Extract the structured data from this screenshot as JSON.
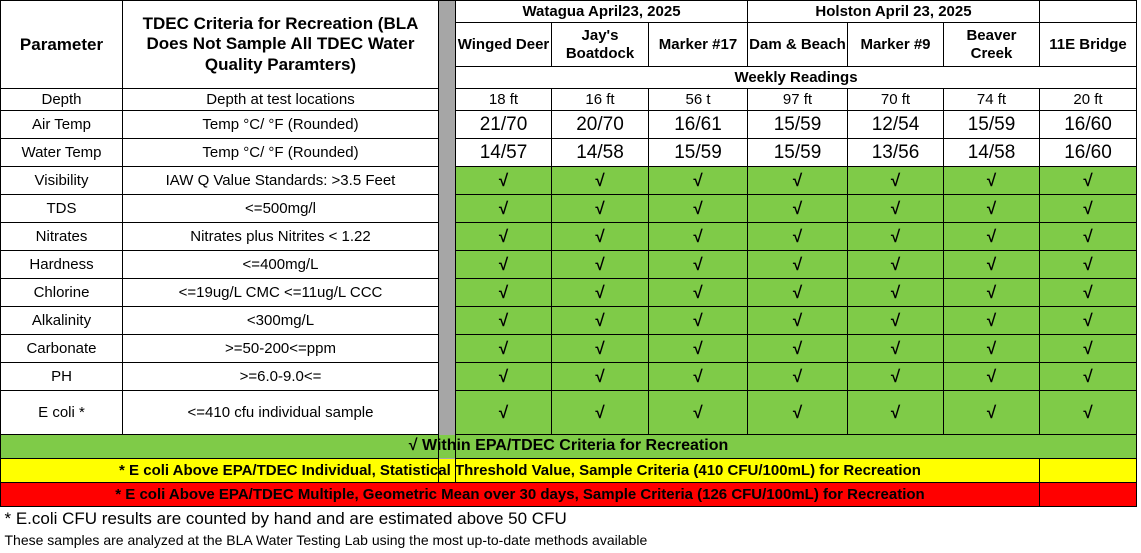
{
  "header": {
    "parameter_label": "Parameter",
    "criteria_label": "TDEC Criteria for Recreation (BLA Does Not Sample All TDEC Water Quality Paramters)",
    "watagua_group": "Watagua April23, 2025",
    "holston_group": "Holston April 23, 2025",
    "weekly_readings": "Weekly Readings"
  },
  "sites": [
    "Winged Deer",
    "Jay's Boatdock",
    "Marker #17",
    "Dam & Beach",
    "Marker #9",
    "Beaver Creek",
    "11E Bridge"
  ],
  "rows": [
    {
      "parameter": "Depth",
      "criteria": "Depth at test locations",
      "values": [
        "18 ft",
        "16 ft",
        "56 t",
        "97 ft",
        "70 ft",
        "74 ft",
        "20 ft"
      ]
    },
    {
      "parameter": "Air Temp",
      "criteria": "Temp  °C/ °F   (Rounded)",
      "values": [
        "21/70",
        "20/70",
        "16/61",
        "15/59",
        "12/54",
        "15/59",
        "16/60"
      ]
    },
    {
      "parameter": "Water Temp",
      "criteria": "Temp  °C/ °F    (Rounded)",
      "values": [
        "14/57",
        "14/58",
        "15/59",
        "15/59",
        "13/56",
        "14/58",
        "16/60"
      ]
    },
    {
      "parameter": "Visibility",
      "criteria": "IAW Q Value Standards: >3.5 Feet",
      "values": [
        "√",
        "√",
        "√",
        "√",
        "√",
        "√",
        "√"
      ]
    },
    {
      "parameter": "TDS",
      "criteria": "<=500mg/l",
      "values": [
        "√",
        "√",
        "√",
        "√",
        "√",
        "√",
        "√"
      ]
    },
    {
      "parameter": "Nitrates",
      "criteria": "Nitrates plus Nitrites < 1.22",
      "values": [
        "√",
        "√",
        "√",
        "√",
        "√",
        "√",
        "√"
      ]
    },
    {
      "parameter": "Hardness",
      "criteria": "<=400mg/L",
      "values": [
        "√",
        "√",
        "√",
        "√",
        "√",
        "√",
        "√"
      ]
    },
    {
      "parameter": "Chlorine",
      "criteria": "<=19ug/L CMC  <=11ug/L CCC",
      "values": [
        "√",
        "√",
        "√",
        "√",
        "√",
        "√",
        "√"
      ]
    },
    {
      "parameter": "Alkalinity",
      "criteria": "<300mg/L",
      "values": [
        "√",
        "√",
        "√",
        "√",
        "√",
        "√",
        "√"
      ]
    },
    {
      "parameter": "Carbonate",
      "criteria": ">=50-200<=ppm",
      "values": [
        "√",
        "√",
        "√",
        "√",
        "√",
        "√",
        "√"
      ]
    },
    {
      "parameter": "PH",
      "criteria": ">=6.0-9.0<=",
      "values": [
        "√",
        "√",
        "√",
        "√",
        "√",
        "√",
        "√"
      ]
    },
    {
      "parameter": "E coli *",
      "criteria": "<=410 cfu individual sample",
      "values": [
        "√",
        "√",
        "√",
        "√",
        "√",
        "√",
        "√"
      ]
    }
  ],
  "legend": {
    "green": "√ Within EPA/TDEC Criteria for Recreation",
    "yellow": "* E coli Above EPA/TDEC Individual, Statistical Threshold Value, Sample Criteria (410 CFU/100mL) for Recreation",
    "red": "* E coli Above EPA/TDEC Multiple, Geometric Mean over 30 days, Sample Criteria (126 CFU/100mL) for Recreation"
  },
  "notes": {
    "ecoli": "* E.coli CFU results are counted by hand and are estimated above 50 CFU",
    "lab": "These samples are analyzed at the BLA Water Testing Lab using the most up-to-date methods available"
  },
  "colors": {
    "green": "#7fcb48",
    "yellow": "#ffff00",
    "red": "#ff0000",
    "separator": "#a6a6a6"
  }
}
